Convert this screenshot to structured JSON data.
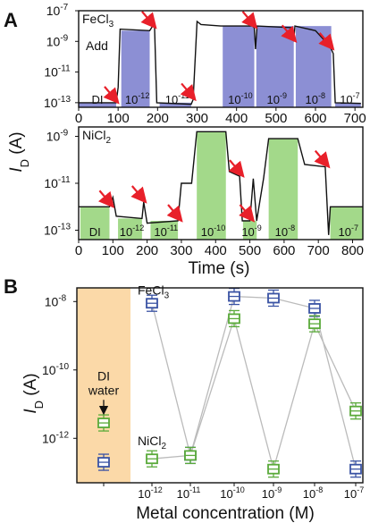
{
  "chart_data": [
    {
      "panel": "A",
      "type": "line",
      "subpanel": "top",
      "ion_label": "FeCl",
      "ion_sub": "3",
      "add_label": "Add",
      "xlim": [
        0,
        720
      ],
      "ylim_log10": [
        -13.3,
        -7
      ],
      "x_tick_labels": [
        "0",
        "100",
        "200",
        "300",
        "400",
        "500",
        "600",
        "700"
      ],
      "x_ticks": [
        0,
        100,
        200,
        300,
        400,
        500,
        600,
        700
      ],
      "y_ticks_log10": [
        -13,
        -11,
        -9,
        -7
      ],
      "y_tick_labels": [
        "10",
        "10",
        "10",
        "10"
      ],
      "y_tick_exps": [
        "-13",
        "-11",
        "-9",
        "-7"
      ],
      "fill_color": "#8c8fd4",
      "regions": [
        {
          "label": "DI",
          "x0": 0,
          "x1": 95,
          "level_log10": -13
        },
        {
          "label": "10",
          "exp": "-12",
          "x0": 108,
          "x1": 180,
          "level_log10": -8.3
        },
        {
          "label": "10",
          "exp": "-11",
          "x0": 205,
          "x1": 285,
          "level_log10": -13
        },
        {
          "label": "10",
          "exp": "-10",
          "x0": 365,
          "x1": 445,
          "level_log10": -8.0
        },
        {
          "label": "10",
          "exp": "-9",
          "x0": 450,
          "x1": 545,
          "level_log10": -8.0
        },
        {
          "label": "10",
          "exp": "-8",
          "x0": 550,
          "x1": 640,
          "level_log10": -8.0
        },
        {
          "label": "10",
          "exp": "-7",
          "x0": 650,
          "x1": 715,
          "level_log10": -13
        }
      ],
      "trace": [
        [
          0,
          -13
        ],
        [
          95,
          -13
        ],
        [
          100,
          -12
        ],
        [
          105,
          -8.2
        ],
        [
          180,
          -8.3
        ],
        [
          185,
          -8.1
        ],
        [
          192,
          -7.8
        ],
        [
          198,
          -13
        ],
        [
          285,
          -13.1
        ],
        [
          290,
          -12.8
        ],
        [
          300,
          -7.7
        ],
        [
          310,
          -7.9
        ],
        [
          360,
          -8.0
        ],
        [
          440,
          -8.0
        ],
        [
          445,
          -8.1
        ],
        [
          448,
          -9.5
        ],
        [
          452,
          -8.0
        ],
        [
          540,
          -8.1
        ],
        [
          545,
          -9.0
        ],
        [
          548,
          -8.0
        ],
        [
          600,
          -8.3
        ],
        [
          625,
          -9.0
        ],
        [
          640,
          -9.5
        ],
        [
          645,
          -9.8
        ],
        [
          650,
          -13
        ],
        [
          715,
          -13.05
        ]
      ],
      "arrows_x": [
        95,
        190,
        290,
        445,
        545,
        640
      ]
    },
    {
      "panel": "A",
      "type": "line",
      "subpanel": "bottom",
      "ion_label": "NiCl",
      "ion_sub": "2",
      "xlim": [
        0,
        830
      ],
      "ylim_log10": [
        -13.4,
        -8.6
      ],
      "ylabel": "I",
      "ylabel_sub": "D",
      "ylabel_unit": " (A)",
      "xlabel": "Time (s)",
      "x_tick_labels": [
        "0",
        "100",
        "200",
        "300",
        "400",
        "500",
        "600",
        "700",
        "800"
      ],
      "x_ticks": [
        0,
        100,
        200,
        300,
        400,
        500,
        600,
        700,
        800
      ],
      "y_ticks_log10": [
        -13,
        -11,
        -9
      ],
      "y_tick_labels": [
        "10",
        "10",
        "10"
      ],
      "y_tick_exps": [
        "-13",
        "-11",
        "-9"
      ],
      "fill_color": "#a3d98a",
      "regions": [
        {
          "label": "DI",
          "x0": 5,
          "x1": 90,
          "level_log10": -12.0
        },
        {
          "label": "10",
          "exp": "-12",
          "x0": 115,
          "x1": 185,
          "level_log10": -12.5
        },
        {
          "label": "10",
          "exp": "-11",
          "x0": 210,
          "x1": 290,
          "level_log10": -12.6
        },
        {
          "label": "10",
          "exp": "-10",
          "x0": 345,
          "x1": 430,
          "level_log10": -8.8
        },
        {
          "label": "10",
          "exp": "-9",
          "x0": 480,
          "x1": 520,
          "level_log10": -12.6
        },
        {
          "label": "10",
          "exp": "-8",
          "x0": 555,
          "x1": 640,
          "level_log10": -9.1
        },
        {
          "label": "10",
          "exp": "-7",
          "x0": 735,
          "x1": 830,
          "level_log10": -12.0
        }
      ],
      "trace": [
        [
          0,
          -12.0
        ],
        [
          90,
          -12.0
        ],
        [
          100,
          -11.6
        ],
        [
          110,
          -12.4
        ],
        [
          185,
          -12.5
        ],
        [
          190,
          -11.8
        ],
        [
          200,
          -12.7
        ],
        [
          290,
          -12.6
        ],
        [
          300,
          -11.0
        ],
        [
          330,
          -11.0
        ],
        [
          345,
          -8.8
        ],
        [
          430,
          -8.8
        ],
        [
          440,
          -10.5
        ],
        [
          470,
          -10.7
        ],
        [
          478,
          -12.6
        ],
        [
          500,
          -12.6
        ],
        [
          510,
          -10.8
        ],
        [
          520,
          -12.6
        ],
        [
          540,
          -10.8
        ],
        [
          555,
          -9.1
        ],
        [
          640,
          -9.1
        ],
        [
          660,
          -10.2
        ],
        [
          720,
          -10.3
        ],
        [
          730,
          -13.2
        ],
        [
          735,
          -12.0
        ],
        [
          830,
          -12.0
        ]
      ],
      "arrows_x": [
        95,
        190,
        295,
        475,
        505,
        725
      ]
    },
    {
      "panel": "B",
      "type": "scatter",
      "ylabel": "I",
      "ylabel_sub": "D",
      "ylabel_unit": " (A)",
      "xlabel": "Metal concentration (M)",
      "ylim_log10": [
        -13.3,
        -7.6
      ],
      "y_ticks_log10": [
        -12,
        -10,
        -8
      ],
      "y_tick_labels": [
        "10",
        "10",
        "10"
      ],
      "y_tick_exps": [
        "-12",
        "-10",
        "-8"
      ],
      "x_tick_labels": [
        "10",
        "10",
        "10",
        "10",
        "10",
        "10"
      ],
      "x_tick_exps": [
        "-12",
        "-11",
        "-10",
        "-9",
        "-8",
        "-7"
      ],
      "x_categories_log10": [
        -12,
        -11,
        -10,
        -9,
        -8,
        -7
      ],
      "di_label_line1": "DI",
      "di_label_line2": "water",
      "di_band_color": "#fbd9a8",
      "series": [
        {
          "name": "FeCl",
          "sub": "3",
          "color": "#3a53a4",
          "di_log10": -12.7,
          "values_log10": [
            -8.05,
            -12.5,
            -7.85,
            -7.9,
            -8.2,
            -12.9
          ]
        },
        {
          "name": "NiCl",
          "sub": "2",
          "color": "#5aaa3a",
          "di_log10": -11.55,
          "values_log10": [
            -12.6,
            -12.5,
            -8.5,
            -12.9,
            -8.65,
            -11.2
          ]
        }
      ],
      "line_color": "#bbbbbb"
    }
  ],
  "panel_labels": {
    "a": "A",
    "b": "B"
  }
}
